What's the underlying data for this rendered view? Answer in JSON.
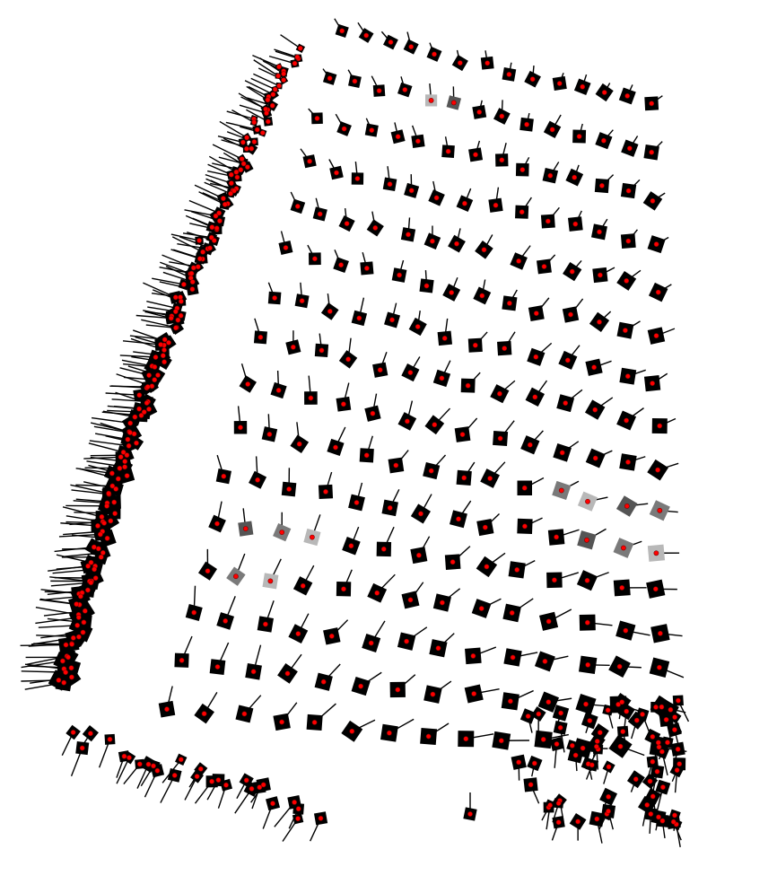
{
  "scene": {
    "kind": "camera-pose-field",
    "background_color": "#ffffff",
    "camera_body_color": "#000000",
    "camera_center_color": "#ff0000",
    "center_outline_color": "#7a0000",
    "optical_axis_color": "#000000",
    "highlight_colors": [
      "#555555",
      "#7a7a7a",
      "#b8b8b8"
    ],
    "rows": 16,
    "cols": 14,
    "left_edge_pose_count": 170
  }
}
